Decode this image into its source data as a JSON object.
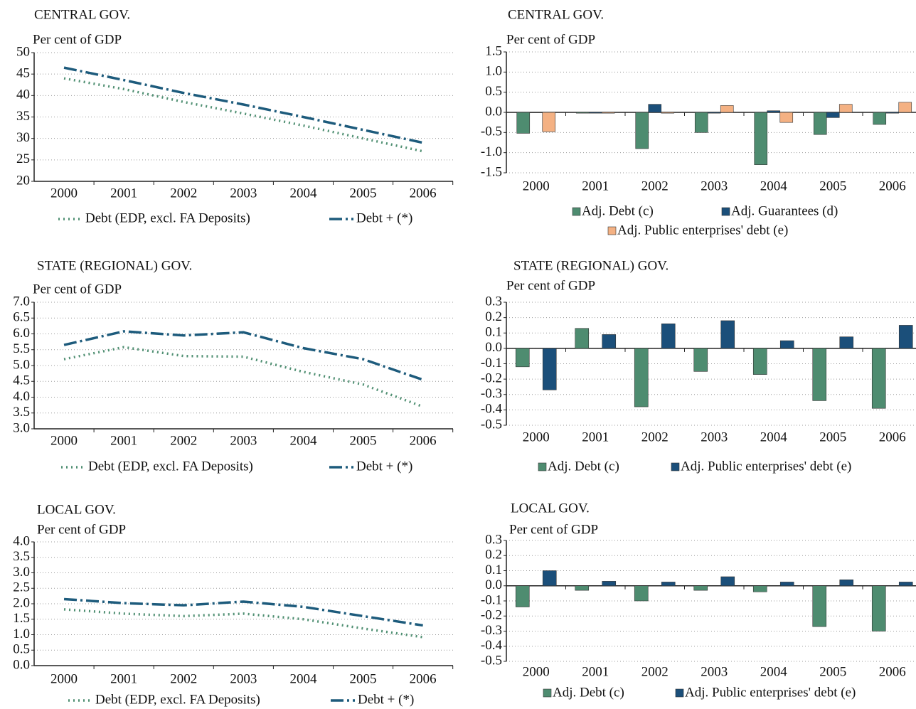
{
  "chart_data": [
    {
      "type": "line",
      "title": "CENTRAL GOV.",
      "ylabel": "Per cent of GDP",
      "categories": [
        "2000",
        "2001",
        "2002",
        "2003",
        "2004",
        "2005",
        "2006"
      ],
      "series": [
        {
          "name": "Debt (EDP, excl. FA Deposits)",
          "color": "#4f8f72",
          "style": "dotted",
          "values": [
            44,
            41.5,
            38.5,
            35.8,
            33,
            30,
            27
          ]
        },
        {
          "name": "Debt + (*)",
          "color": "#1d5b7c",
          "style": "dash-dot",
          "values": [
            46.5,
            43.6,
            40.6,
            37.9,
            35,
            32,
            29
          ]
        }
      ],
      "ylim": [
        20,
        50
      ],
      "yticks": [
        20,
        25,
        30,
        35,
        40,
        45,
        50
      ],
      "grid": true
    },
    {
      "type": "bar",
      "title": "CENTRAL GOV.",
      "ylabel": "Per cent of GDP",
      "categories": [
        "2000",
        "2001",
        "2002",
        "2003",
        "2004",
        "2005",
        "2006"
      ],
      "series": [
        {
          "name": "Adj. Debt (c)",
          "color": "#4e8c70",
          "values": [
            -0.52,
            -0.02,
            -0.9,
            -0.5,
            -1.3,
            -0.55,
            -0.3
          ]
        },
        {
          "name": "Adj. Guarantees (d)",
          "color": "#1b4f7a",
          "values": [
            0,
            -0.02,
            0.2,
            -0.02,
            0.04,
            -0.13,
            -0.02
          ]
        },
        {
          "name": "Adj. Public enterprises' debt (e)",
          "color": "#f4b183",
          "values": [
            -0.48,
            -0.02,
            -0.02,
            0.17,
            -0.25,
            0.2,
            0.25
          ]
        }
      ],
      "ylim": [
        -1.5,
        1.5
      ],
      "yticks": [
        -1.5,
        {
          "value": -1,
          "label": "-1.0"
        },
        -0.5,
        {
          "value": 0,
          "label": "0.0"
        },
        0.5,
        {
          "value": 1,
          "label": "1.0"
        },
        1.5
      ],
      "grid": true
    },
    {
      "type": "line",
      "title": "STATE (REGIONAL) GOV.",
      "ylabel": "Per cent of GDP",
      "categories": [
        "2000",
        "2001",
        "2002",
        "2003",
        "2004",
        "2005",
        "2006"
      ],
      "series": [
        {
          "name": "Debt (EDP, excl. FA Deposits)",
          "color": "#4f8f72",
          "style": "dotted",
          "values": [
            5.2,
            5.58,
            5.3,
            5.28,
            4.8,
            4.4,
            3.7
          ]
        },
        {
          "name": "Debt + (*)",
          "color": "#1d5b7c",
          "style": "dash-dot",
          "values": [
            5.65,
            6.08,
            5.95,
            6.05,
            5.55,
            5.2,
            4.55
          ]
        }
      ],
      "ylim": [
        3,
        7
      ],
      "yticks": [
        {
          "value": 3,
          "label": "3.0"
        },
        3.5,
        {
          "value": 4,
          "label": "4.0"
        },
        4.5,
        {
          "value": 5,
          "label": "5.0"
        },
        5.5,
        {
          "value": 6,
          "label": "6.0"
        },
        6.5,
        {
          "value": 7,
          "label": "7.0"
        }
      ],
      "grid": true
    },
    {
      "type": "bar",
      "title": "STATE (REGIONAL) GOV.",
      "ylabel": "Per cent of GDP",
      "categories": [
        "2000",
        "2001",
        "2002",
        "2003",
        "2004",
        "2005",
        "2006"
      ],
      "series": [
        {
          "name": "Adj. Debt (c)",
          "color": "#4e8c70",
          "values": [
            -0.12,
            0.13,
            -0.38,
            -0.15,
            -0.17,
            -0.34,
            -0.39
          ]
        },
        {
          "name": "Adj. Public enterprises' debt (e)",
          "color": "#1b4f7a",
          "values": [
            -0.27,
            0.09,
            0.16,
            0.18,
            0.05,
            0.075,
            0.15
          ]
        }
      ],
      "ylim": [
        -0.5,
        0.3
      ],
      "yticks": [
        -0.5,
        -0.4,
        -0.3,
        -0.2,
        -0.1,
        {
          "value": 0,
          "label": "0.0"
        },
        0.1,
        0.2,
        0.3
      ],
      "grid": true
    },
    {
      "type": "line",
      "title": "LOCAL GOV.",
      "ylabel": "Per cent of GDP",
      "categories": [
        "2000",
        "2001",
        "2002",
        "2003",
        "2004",
        "2005",
        "2006"
      ],
      "series": [
        {
          "name": "Debt (EDP, excl. FA Deposits)",
          "color": "#4f8f72",
          "style": "dotted",
          "values": [
            1.82,
            1.68,
            1.6,
            1.68,
            1.5,
            1.2,
            0.92
          ]
        },
        {
          "name": "Debt + (*)",
          "color": "#1d5b7c",
          "style": "dash-dot",
          "values": [
            2.15,
            2.02,
            1.95,
            2.07,
            1.9,
            1.6,
            1.3
          ]
        }
      ],
      "ylim": [
        0,
        4
      ],
      "yticks": [
        {
          "value": 0,
          "label": "0.0"
        },
        0.5,
        {
          "value": 1,
          "label": "1.0"
        },
        1.5,
        {
          "value": 2,
          "label": "2.0"
        },
        2.5,
        {
          "value": 3,
          "label": "3.0"
        },
        3.5,
        {
          "value": 4,
          "label": "4.0"
        }
      ],
      "grid": true
    },
    {
      "type": "bar",
      "title": "LOCAL GOV.",
      "ylabel": "Per cent of GDP",
      "categories": [
        "2000",
        "2001",
        "2002",
        "2003",
        "2004",
        "2005",
        "2006"
      ],
      "series": [
        {
          "name": "Adj. Debt (c)",
          "color": "#4e8c70",
          "values": [
            -0.14,
            -0.03,
            -0.1,
            -0.03,
            -0.04,
            -0.27,
            -0.3
          ]
        },
        {
          "name": "Adj. Public enterprises' debt (e)",
          "color": "#1b4f7a",
          "values": [
            0.1,
            0.03,
            0.025,
            0.06,
            0.025,
            0.04,
            0.025
          ]
        }
      ],
      "ylim": [
        -0.5,
        0.3
      ],
      "yticks": [
        -0.5,
        -0.4,
        -0.3,
        -0.2,
        -0.1,
        {
          "value": 0,
          "label": "0.0"
        },
        0.1,
        0.2,
        0.3
      ],
      "grid": true
    }
  ]
}
